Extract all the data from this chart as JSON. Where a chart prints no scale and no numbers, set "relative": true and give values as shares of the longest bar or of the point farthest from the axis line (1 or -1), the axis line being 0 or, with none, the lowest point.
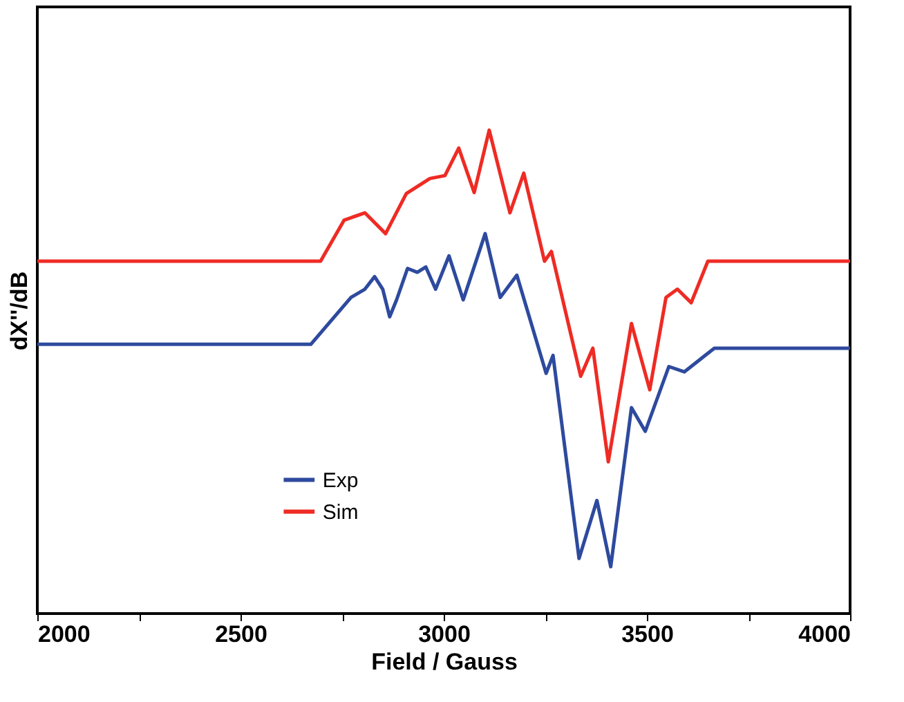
{
  "chart_data": {
    "type": "line",
    "xlabel": "Field / Gauss",
    "ylabel": "dX''/dB",
    "relative": true,
    "xlim": [
      2000,
      4000
    ],
    "xticks": [
      2000,
      {
        "value": 2250,
        "label": null
      },
      2500,
      {
        "value": 2750,
        "label": null
      },
      3000,
      {
        "value": 3250,
        "label": null
      },
      3500,
      {
        "value": 3750,
        "label": null
      },
      4000
    ],
    "tick_labels": "x",
    "grid": false,
    "legend": "bottom left",
    "marker": "none",
    "line_style": "solid",
    "series": [
      {
        "name": "Exp",
        "color": "#2e4a9e",
        "x": [
          2000,
          2673,
          2772,
          2806,
          2830,
          2850,
          2867,
          2884,
          2911,
          2935,
          2956,
          2980,
          3013,
          3048,
          3102,
          3139,
          3180,
          3252,
          3269,
          3333,
          3377,
          3411,
          3462,
          3496,
          3554,
          3592,
          3666,
          4000
        ],
        "values": [
          0.557,
          0.557,
          0.654,
          0.671,
          0.697,
          0.671,
          0.614,
          0.649,
          0.714,
          0.706,
          0.717,
          0.671,
          0.74,
          0.649,
          0.786,
          0.654,
          0.7,
          0.497,
          0.534,
          0.114,
          0.234,
          0.097,
          0.426,
          0.377,
          0.511,
          0.5,
          0.549,
          0.549
        ]
      },
      {
        "name": "Sim",
        "color": "#ee2b24",
        "x": [
          2000,
          2697,
          2755,
          2806,
          2857,
          2908,
          2966,
          3003,
          3037,
          3075,
          3112,
          3163,
          3197,
          3248,
          3265,
          3337,
          3367,
          3405,
          3462,
          3507,
          3547,
          3575,
          3609,
          3650,
          4000
        ],
        "values": [
          0.729,
          0.729,
          0.814,
          0.829,
          0.786,
          0.869,
          0.9,
          0.906,
          0.963,
          0.871,
          1.0,
          0.829,
          0.911,
          0.729,
          0.749,
          0.491,
          0.549,
          0.314,
          0.6,
          0.463,
          0.654,
          0.671,
          0.643,
          0.729,
          0.729
        ]
      }
    ]
  }
}
